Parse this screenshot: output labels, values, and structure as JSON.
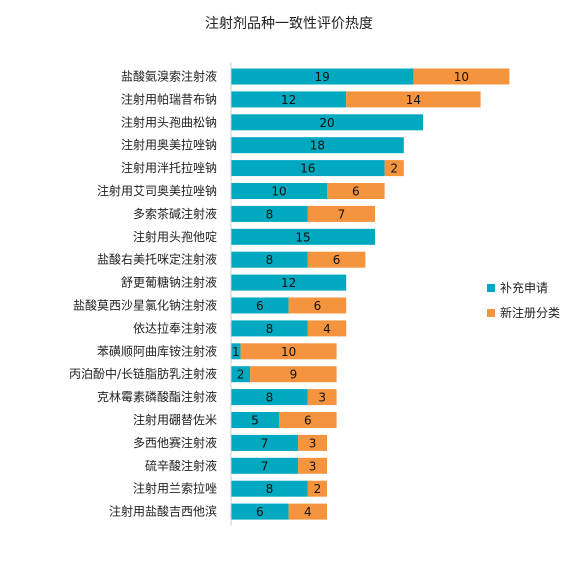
{
  "chart_data": {
    "type": "bar",
    "orientation": "horizontal",
    "stacked": true,
    "title": "注射剂品种一致性评价热度",
    "xlabel": "",
    "ylabel": "",
    "grid": false,
    "legend_position": "right",
    "xlim": [
      0,
      30
    ],
    "categories": [
      "盐酸氨溴索注射液",
      "注射用帕瑞昔布钠",
      "注射用头孢曲松钠",
      "注射用奥美拉唑钠",
      "注射用泮托拉唑钠",
      "注射用艾司奥美拉唑钠",
      "多索茶碱注射液",
      "注射用头孢他啶",
      "盐酸右美托咪定注射液",
      "舒更葡糖钠注射液",
      "盐酸莫西沙星氯化钠注射液",
      "依达拉奉注射液",
      "苯磺顺阿曲库铵注射液",
      "丙泊酚中/长链脂肪乳注射液",
      "克林霉素磷酸酯注射液",
      "注射用硼替佐米",
      "多西他赛注射液",
      "硫辛酸注射液",
      "注射用兰索拉唑",
      "注射用盐酸吉西他滨"
    ],
    "series": [
      {
        "name": "补充申请",
        "color": "#00a8c0",
        "values": [
          19,
          12,
          20,
          18,
          16,
          10,
          8,
          15,
          8,
          12,
          6,
          8,
          1,
          2,
          8,
          5,
          7,
          7,
          8,
          6
        ]
      },
      {
        "name": "新注册分类",
        "color": "#f5943f",
        "values": [
          10,
          14,
          0,
          0,
          2,
          6,
          7,
          0,
          6,
          0,
          6,
          4,
          10,
          9,
          3,
          6,
          3,
          3,
          2,
          4
        ]
      }
    ]
  }
}
